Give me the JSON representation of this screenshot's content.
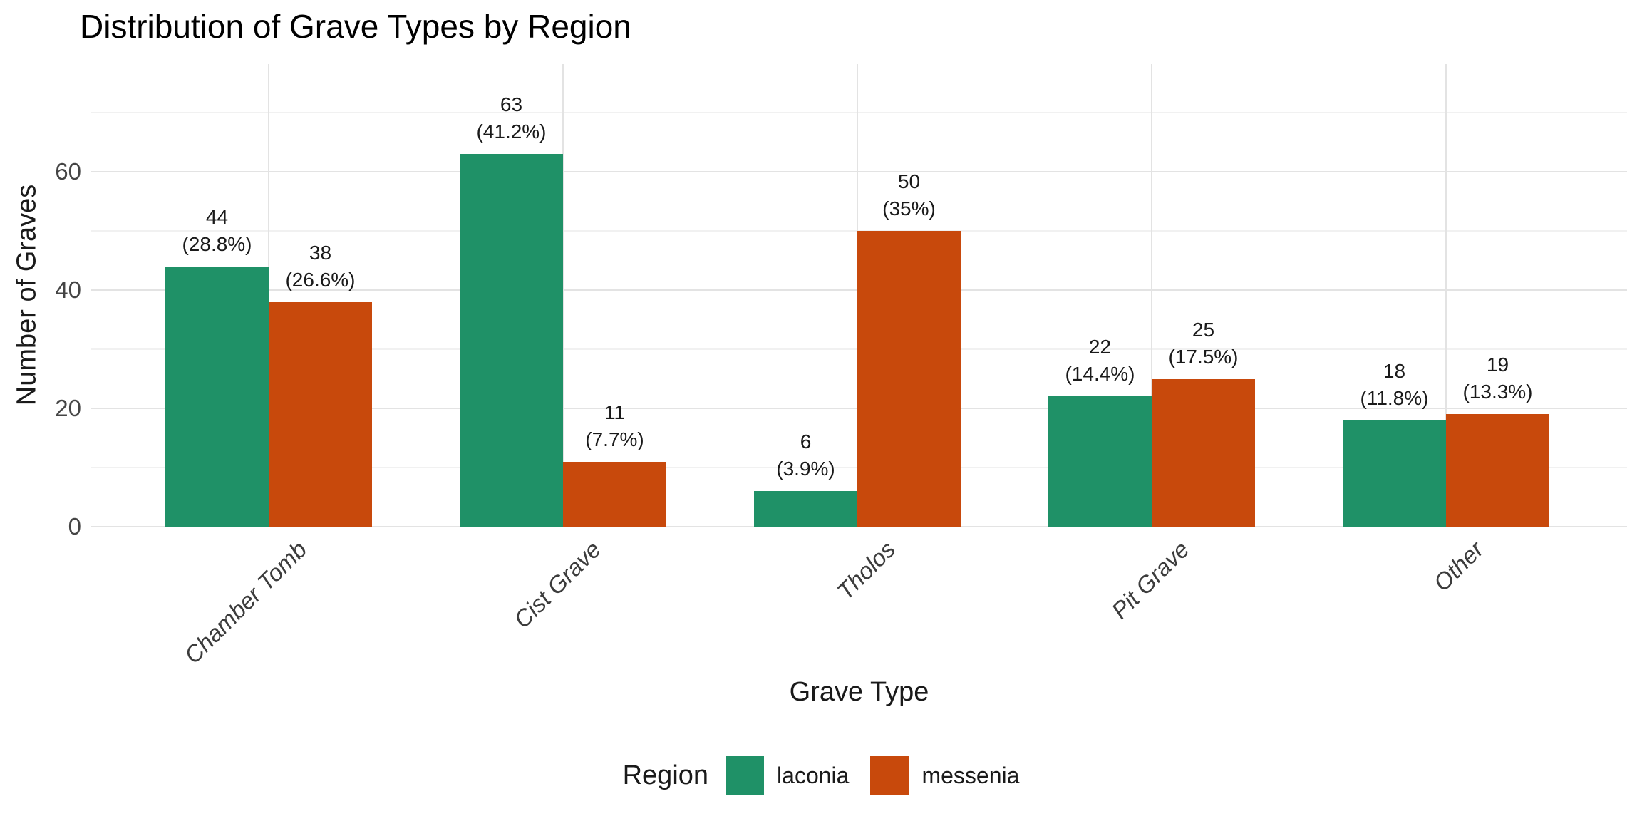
{
  "title": "Distribution of Grave Types by Region",
  "chart_data": {
    "type": "bar",
    "categories": [
      "Chamber Tomb",
      "Cist Grave",
      "Tholos",
      "Pit Grave",
      "Other"
    ],
    "series": [
      {
        "name": "laconia",
        "color": "#1F9167",
        "values": [
          44,
          63,
          6,
          22,
          18
        ],
        "pct_labels": [
          "(28.8%)",
          "(41.2%)",
          "(3.9%)",
          "(14.4%)",
          "(11.8%)"
        ]
      },
      {
        "name": "messenia",
        "color": "#C8490C",
        "values": [
          38,
          11,
          50,
          25,
          19
        ],
        "pct_labels": [
          "(26.6%)",
          "(7.7%)",
          "(35%)",
          "(17.5%)",
          "(13.3%)"
        ]
      }
    ],
    "xlabel": "Grave Type",
    "ylabel": "Number of Graves",
    "y_ticks": [
      0,
      20,
      40,
      60
    ],
    "y_minor_ticks": [
      10,
      30,
      50,
      70
    ],
    "ylim": [
      0,
      78
    ],
    "grid": "on",
    "legend_title": "Region",
    "legend_position": "bottom"
  },
  "colors": {
    "grid_major": "#e3e3e3",
    "grid_minor": "#f1f1f1",
    "title_text": "#000000",
    "axis_text": "#454545",
    "category_text": "#3c3c3c"
  }
}
